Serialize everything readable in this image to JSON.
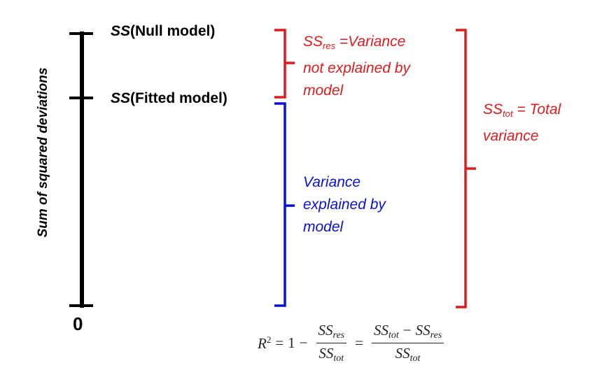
{
  "axis": {
    "label": "Sum of squared deviations",
    "zero_label": "0"
  },
  "levels": {
    "null_model": {
      "ss": "SS",
      "label": "(Null model)"
    },
    "fitted_model": {
      "ss": "SS",
      "label": "(Fitted model)"
    }
  },
  "brackets": {
    "residual": {
      "ss": "SS",
      "sub": "res",
      "line1": " =Variance",
      "line2": "not explained by",
      "line3": "model"
    },
    "explained": {
      "line1": "Variance",
      "line2": "explained by",
      "line3": "model"
    },
    "total": {
      "ss": "SS",
      "sub": "tot",
      "line1": " = Total",
      "line2": "variance"
    }
  },
  "formula": {
    "lhs": "R",
    "exp": "2",
    "eq": "=",
    "one": "1",
    "minus": "−",
    "ss": "SS",
    "res": "res",
    "tot": "tot"
  },
  "colors": {
    "axis": "#000000",
    "residual": "#e31a1c",
    "explained": "#0a10d8",
    "total": "#e31a1c"
  }
}
